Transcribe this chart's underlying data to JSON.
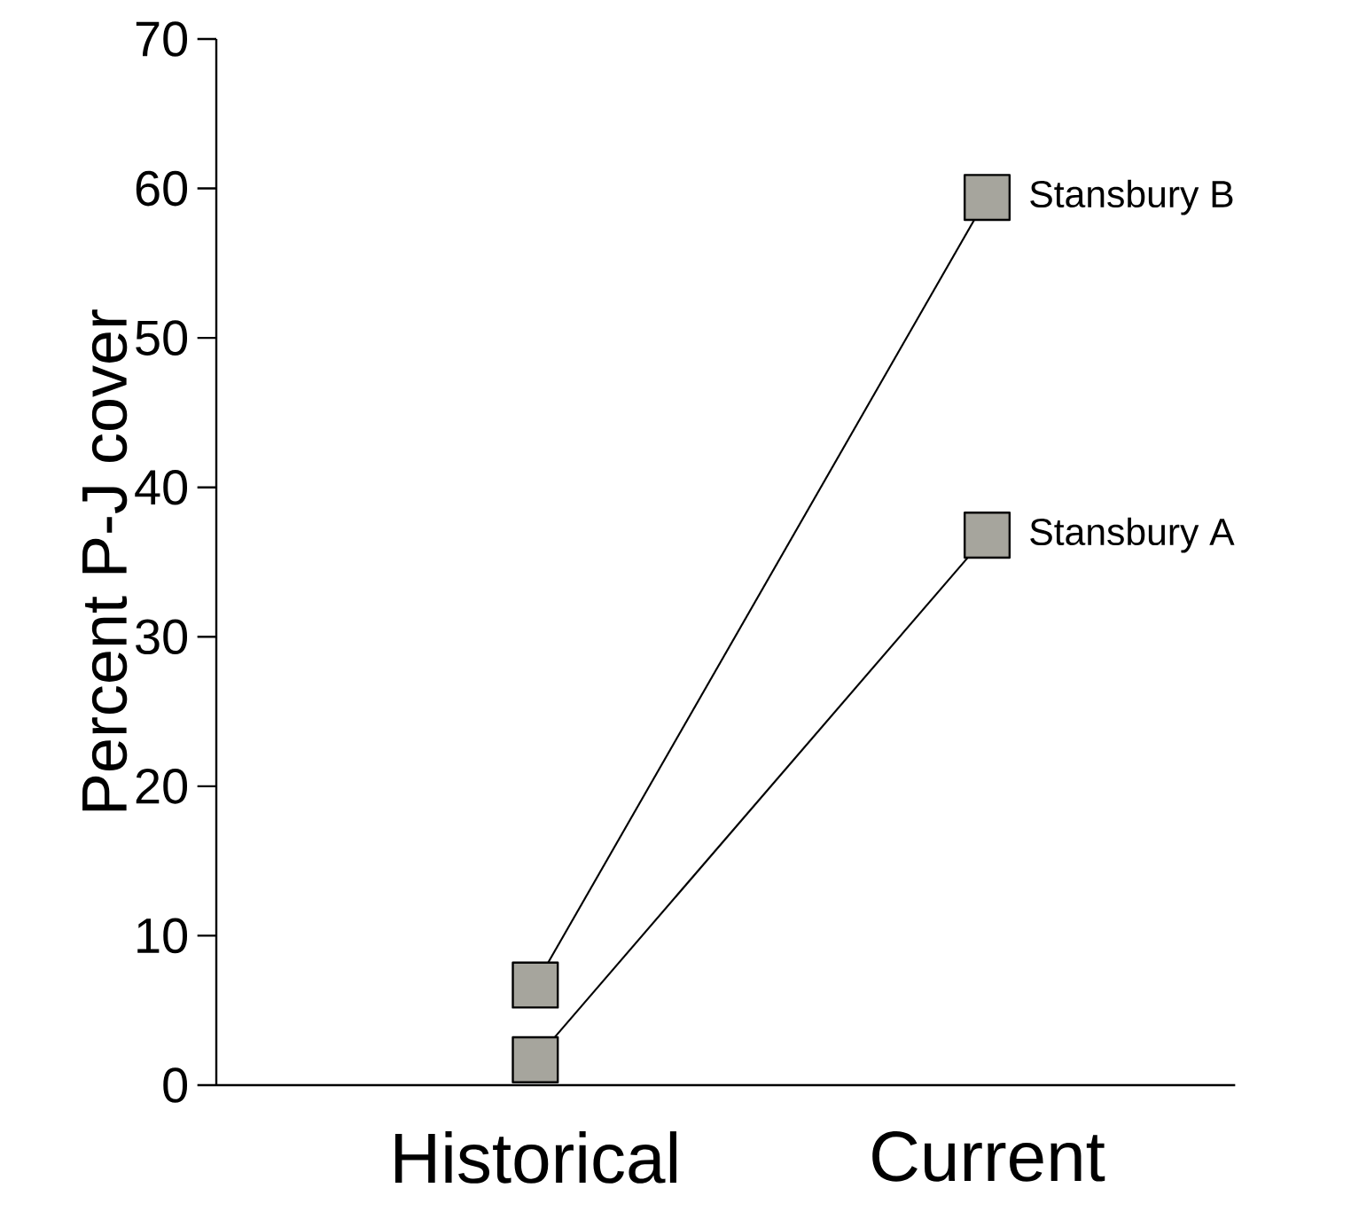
{
  "chart_data": {
    "type": "line",
    "ylabel": "Percent P-J cover",
    "categories": [
      "Historical",
      "Current"
    ],
    "series": [
      {
        "name": "Stansbury A",
        "color": "#a6a59d",
        "values": [
          1.7,
          36.8
        ]
      },
      {
        "name": "Stansbury B",
        "color": "#a6a59d",
        "values": [
          6.7,
          59.4
        ]
      }
    ],
    "ylim": [
      0,
      70
    ],
    "yticks": [
      0,
      10,
      20,
      30,
      40,
      50,
      60,
      70
    ],
    "marker": "square",
    "line_style": "solid",
    "grid": false,
    "legend": false
  }
}
